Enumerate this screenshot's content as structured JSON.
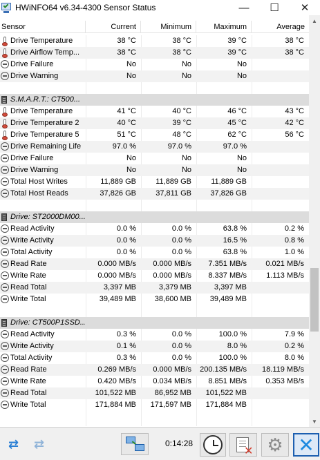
{
  "window": {
    "title": "HWiNFO64 v6.34-4300 Sensor Status",
    "minimize": "—",
    "maximize": "☐",
    "close": "✕"
  },
  "columns": [
    "Sensor",
    "Current",
    "Minimum",
    "Maximum",
    "Average"
  ],
  "rows": [
    {
      "kind": "therm",
      "label": "Drive Temperature",
      "cur": "38 °C",
      "min": "38 °C",
      "max": "39 °C",
      "avg": "38 °C"
    },
    {
      "kind": "therm",
      "label": "Drive Airflow Temp...",
      "cur": "38 °C",
      "min": "38 °C",
      "max": "39 °C",
      "avg": "38 °C"
    },
    {
      "kind": "minus",
      "label": "Drive Failure",
      "cur": "No",
      "min": "No",
      "max": "No",
      "avg": ""
    },
    {
      "kind": "minus",
      "label": "Drive Warning",
      "cur": "No",
      "min": "No",
      "max": "No",
      "avg": ""
    },
    {
      "kind": "blank"
    },
    {
      "kind": "group",
      "label": "S.M.A.R.T.: CT500..."
    },
    {
      "kind": "therm",
      "label": "Drive Temperature",
      "cur": "41 °C",
      "min": "40 °C",
      "max": "46 °C",
      "avg": "43 °C"
    },
    {
      "kind": "therm",
      "label": "Drive Temperature 2",
      "cur": "40 °C",
      "min": "39 °C",
      "max": "45 °C",
      "avg": "42 °C"
    },
    {
      "kind": "therm",
      "label": "Drive Temperature 5",
      "cur": "51 °C",
      "min": "48 °C",
      "max": "62 °C",
      "avg": "56 °C"
    },
    {
      "kind": "minus",
      "label": "Drive Remaining Life",
      "cur": "97.0 %",
      "min": "97.0 %",
      "max": "97.0 %",
      "avg": ""
    },
    {
      "kind": "minus",
      "label": "Drive Failure",
      "cur": "No",
      "min": "No",
      "max": "No",
      "avg": ""
    },
    {
      "kind": "minus",
      "label": "Drive Warning",
      "cur": "No",
      "min": "No",
      "max": "No",
      "avg": ""
    },
    {
      "kind": "minus",
      "label": "Total Host Writes",
      "cur": "11,889 GB",
      "min": "11,889 GB",
      "max": "11,889 GB",
      "avg": ""
    },
    {
      "kind": "minus",
      "label": "Total Host Reads",
      "cur": "37,826 GB",
      "min": "37,811 GB",
      "max": "37,826 GB",
      "avg": ""
    },
    {
      "kind": "blank"
    },
    {
      "kind": "group",
      "label": "Drive: ST2000DM00..."
    },
    {
      "kind": "minus",
      "label": "Read Activity",
      "cur": "0.0 %",
      "min": "0.0 %",
      "max": "63.8 %",
      "avg": "0.2 %"
    },
    {
      "kind": "minus",
      "label": "Write Activity",
      "cur": "0.0 %",
      "min": "0.0 %",
      "max": "16.5 %",
      "avg": "0.8 %"
    },
    {
      "kind": "minus",
      "label": "Total Activity",
      "cur": "0.0 %",
      "min": "0.0 %",
      "max": "63.8 %",
      "avg": "1.0 %"
    },
    {
      "kind": "minus",
      "label": "Read Rate",
      "cur": "0.000 MB/s",
      "min": "0.000 MB/s",
      "max": "7.351 MB/s",
      "avg": "0.021 MB/s"
    },
    {
      "kind": "minus",
      "label": "Write Rate",
      "cur": "0.000 MB/s",
      "min": "0.000 MB/s",
      "max": "8.337 MB/s",
      "avg": "1.113 MB/s"
    },
    {
      "kind": "minus",
      "label": "Read Total",
      "cur": "3,397 MB",
      "min": "3,379 MB",
      "max": "3,397 MB",
      "avg": ""
    },
    {
      "kind": "minus",
      "label": "Write Total",
      "cur": "39,489 MB",
      "min": "38,600 MB",
      "max": "39,489 MB",
      "avg": ""
    },
    {
      "kind": "blank"
    },
    {
      "kind": "group",
      "label": "Drive: CT500P1SSD..."
    },
    {
      "kind": "minus",
      "label": "Read Activity",
      "cur": "0.3 %",
      "min": "0.0 %",
      "max": "100.0 %",
      "avg": "7.9 %"
    },
    {
      "kind": "minus",
      "label": "Write Activity",
      "cur": "0.1 %",
      "min": "0.0 %",
      "max": "8.0 %",
      "avg": "0.2 %"
    },
    {
      "kind": "minus",
      "label": "Total Activity",
      "cur": "0.3 %",
      "min": "0.0 %",
      "max": "100.0 %",
      "avg": "8.0 %"
    },
    {
      "kind": "minus",
      "label": "Read Rate",
      "cur": "0.269 MB/s",
      "min": "0.000 MB/s",
      "max": "200.135 MB/s",
      "avg": "18.119 MB/s"
    },
    {
      "kind": "minus",
      "label": "Write Rate",
      "cur": "0.420 MB/s",
      "min": "0.034 MB/s",
      "max": "8.851 MB/s",
      "avg": "0.353 MB/s"
    },
    {
      "kind": "minus",
      "label": "Read Total",
      "cur": "101,522 MB",
      "min": "86,952 MB",
      "max": "101,522 MB",
      "avg": ""
    },
    {
      "kind": "minus",
      "label": "Write Total",
      "cur": "171,884 MB",
      "min": "171,597 MB",
      "max": "171,884 MB",
      "avg": ""
    },
    {
      "kind": "blank"
    }
  ],
  "status": {
    "elapsed": "0:14:28"
  },
  "icons": {
    "nav_arrows": "double-arrow-icon",
    "nav_arrows_dim": "double-arrow-dim-icon",
    "network": "network-icon",
    "clock": "clock-icon",
    "report": "report-icon",
    "settings": "gear-icon",
    "exit": "close-icon"
  },
  "colors": {
    "accent": "#1d8ae0",
    "group_bg": "#dcdcdc",
    "alt_row": "#f2f2f2"
  }
}
